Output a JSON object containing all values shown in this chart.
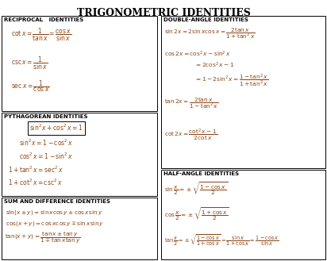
{
  "title": "TRIGONOMETRIC IDENTITIES",
  "title_fontsize": 9,
  "bg_color": "#ffffff",
  "box_color": "#000000",
  "text_color": "#000000",
  "formula_color": "#8B4513",
  "header_color": "#000000",
  "recip_header": "RECIPROCAL   IDENTITIES",
  "pyth_header": "PYTHAGOREAN IDENTITIES",
  "sum_header": "SUM AND DIFFERENCE IDENTITIES",
  "da_header": "DOUBLE-ANGLE IDENTITIES",
  "ha_header": "HALF-ANGLE IDENTITIES"
}
